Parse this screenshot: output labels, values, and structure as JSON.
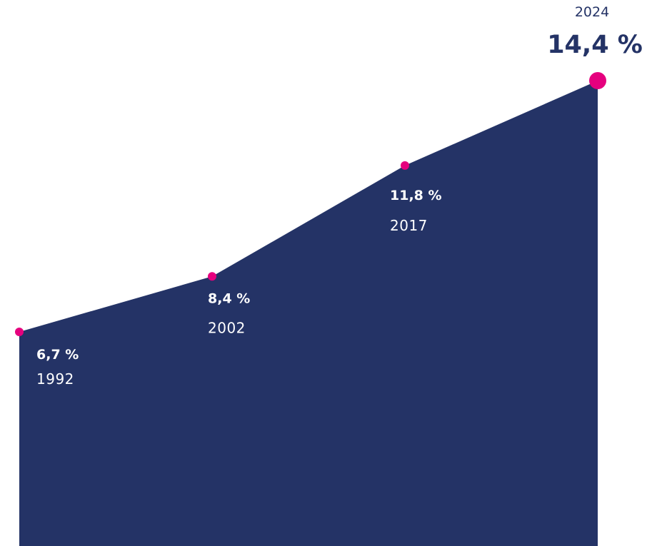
{
  "chart_data": {
    "type": "area",
    "x": [
      1992,
      2002,
      2017,
      2024
    ],
    "values": [
      6.7,
      8.4,
      11.8,
      14.4
    ],
    "value_labels": [
      "6,7 %",
      "8,4 %",
      "11,8 %",
      "14,4 %"
    ],
    "year_labels": [
      "1992",
      "2002",
      "2017",
      "2024"
    ],
    "title": "",
    "xlabel": "",
    "ylabel": "",
    "grid": false,
    "colors": {
      "area": "#243366",
      "marker": "#e5007e",
      "label_on_area": "#ffffff",
      "label_off_area_value": "#243366",
      "label_off_area_year": "#243366"
    }
  }
}
